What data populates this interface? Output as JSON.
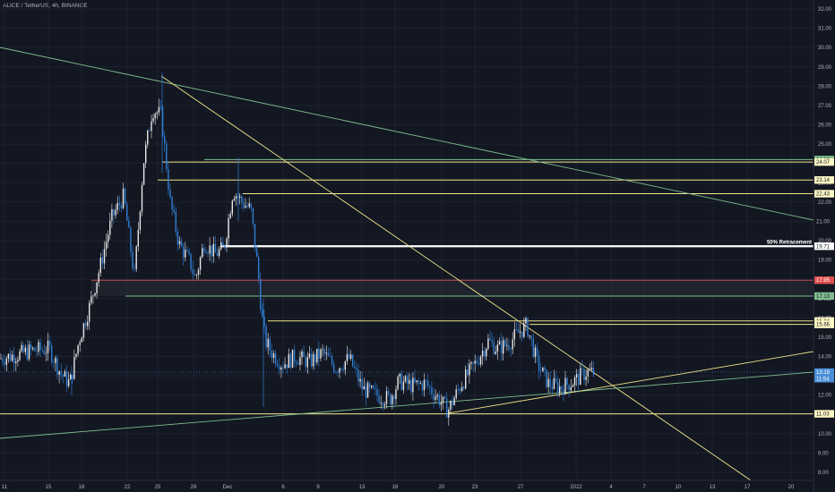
{
  "header": {
    "symbol": "ALICE / TetherUS",
    "separator": ", ",
    "interval": "4h",
    "exchange": "BINANCE"
  },
  "colors": {
    "background": "#131722",
    "candle_up": "#e9e9e9",
    "candle_down": "#2f7fd6",
    "level_yellow": "#f0e68c",
    "level_green": "#7fbf8f",
    "level_red": "#c94a4a",
    "grid": "#1e2230",
    "current_price": "#4a90d9"
  },
  "chart_data": {
    "type": "candlestick",
    "title": "",
    "x_ticks": [
      "11",
      "15",
      "18",
      "22",
      "25",
      "28",
      "Dec",
      "6",
      "9",
      "13",
      "16",
      "20",
      "23",
      "27",
      "2022",
      "4",
      "7",
      "10",
      "13",
      "17",
      "20"
    ],
    "y_ticks": [
      "8.00",
      "9.00",
      "10.00",
      "11.00",
      "12.00",
      "13.00",
      "14.00",
      "15.00",
      "16.00",
      "17.00",
      "18.00",
      "19.00",
      "20.00",
      "21.00",
      "22.00",
      "23.00",
      "24.00",
      "25.00",
      "26.00",
      "27.00",
      "28.00",
      "29.00",
      "30.00",
      "31.00",
      "32.00"
    ],
    "y_range": [
      7.8,
      32.2
    ],
    "price_tags": [
      {
        "label": "24.20",
        "value": 24.2,
        "style": "green"
      },
      {
        "label": "24.07",
        "value": 24.07,
        "style": "yellow"
      },
      {
        "label": "23.14",
        "value": 23.14,
        "style": "yellow"
      },
      {
        "label": "22.43",
        "value": 22.43,
        "style": "yellow"
      },
      {
        "label": "21.00",
        "value": 21.0,
        "style": "axis"
      },
      {
        "label": "19.71",
        "value": 19.71,
        "style": "white"
      },
      {
        "label": "17.95",
        "value": 17.95,
        "style": "red"
      },
      {
        "label": "17.13",
        "value": 17.13,
        "style": "green"
      },
      {
        "label": "15.84",
        "value": 15.84,
        "style": "yellow"
      },
      {
        "label": "15.66",
        "value": 15.66,
        "style": "yellow"
      },
      {
        "label": "13.19",
        "value": 13.19,
        "style": "blue"
      },
      {
        "label": "11:54",
        "value": 12.85,
        "style": "blue"
      },
      {
        "label": "11.03",
        "value": 11.03,
        "style": "yellow"
      }
    ],
    "annotations": [
      {
        "text": "50% Retracement",
        "value": 19.71
      }
    ],
    "last_price": 13.19,
    "countdown": "11:54"
  }
}
